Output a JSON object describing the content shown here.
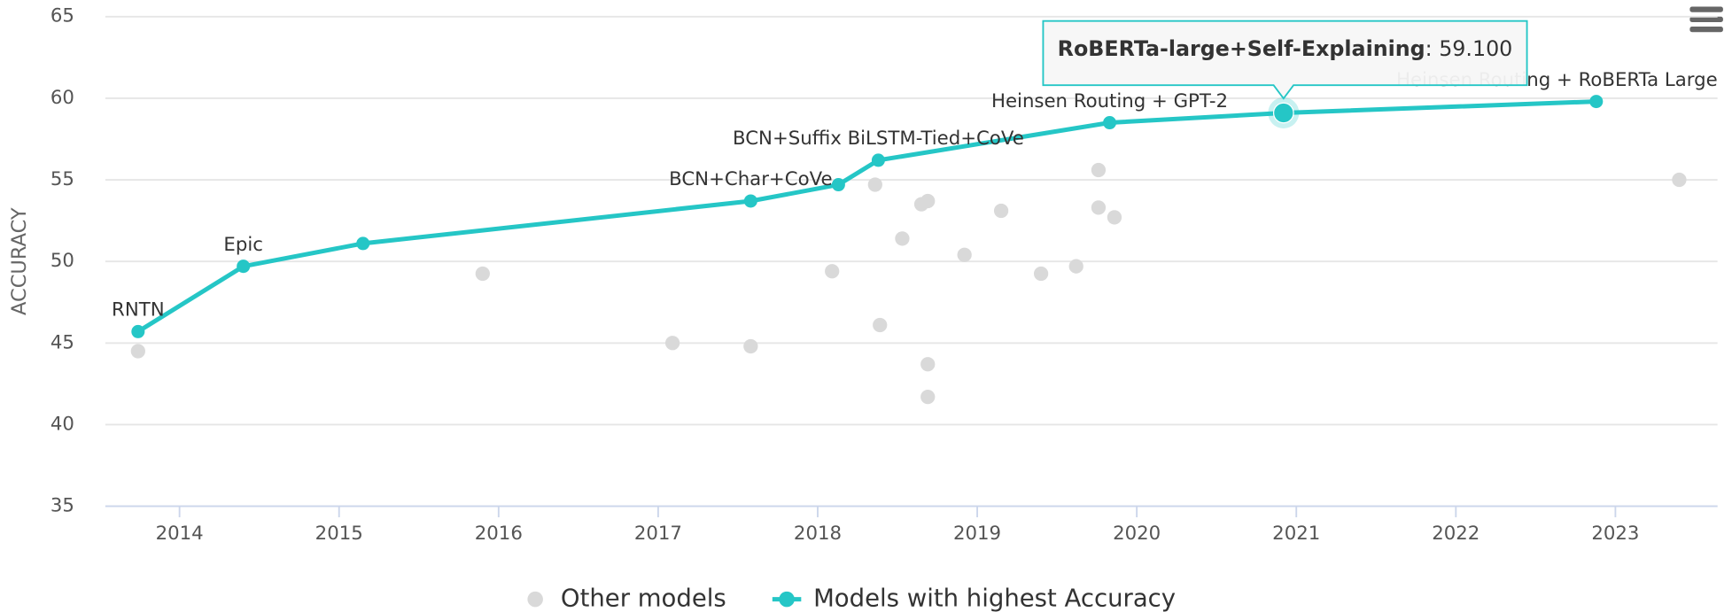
{
  "chart_data": {
    "type": "line",
    "y_axis_label": "ACCURACY",
    "xlim": [
      2013.535,
      2023.64
    ],
    "xticks": [
      2014,
      2015,
      2016,
      2017,
      2018,
      2019,
      2020,
      2021,
      2022,
      2023
    ],
    "ylim": [
      35,
      65
    ],
    "yticks": [
      35,
      40,
      45,
      50,
      55,
      60,
      65
    ],
    "grid": true,
    "legend_position": "bottom",
    "series": [
      {
        "name": "Other models",
        "type": "scatter",
        "color": "#d9d9d9",
        "x": [
          2013.74,
          2015.9,
          2017.09,
          2017.58,
          2018.09,
          2018.36,
          2018.39,
          2018.53,
          2018.65,
          2018.69,
          2018.69,
          2018.69,
          2018.92,
          2019.15,
          2019.4,
          2019.62,
          2019.76,
          2019.76,
          2019.86,
          2023.4
        ],
        "values": [
          44.5,
          49.25,
          45.0,
          44.8,
          49.4,
          54.7,
          46.1,
          51.4,
          53.5,
          53.7,
          43.7,
          41.7,
          50.4,
          53.1,
          49.25,
          49.7,
          55.6,
          53.3,
          52.7,
          55.0
        ]
      },
      {
        "name": "Models with highest Accuracy",
        "type": "line",
        "color": "#25c6c6",
        "x": [
          2013.74,
          2014.4,
          2015.15,
          2017.58,
          2018.13,
          2018.38,
          2019.83,
          2020.92,
          2022.88
        ],
        "values": [
          45.7,
          49.7,
          51.1,
          53.7,
          54.7,
          56.2,
          58.5,
          59.1,
          59.8
        ],
        "point_labels": [
          "RNTN",
          "Epic",
          null,
          "BCN+Char+CoVe",
          null,
          "BCN+Suffix BiLSTM-Tied+CoVe",
          "Heinsen Routing + GPT-2",
          null,
          "Heinsen Routing + RoBERTa Large"
        ]
      }
    ],
    "tooltip": {
      "series": 1,
      "index": 7,
      "name": "RoBERTa-large+Self-Explaining",
      "separator": ":",
      "value": 59.1,
      "value_label": "59.100"
    }
  }
}
